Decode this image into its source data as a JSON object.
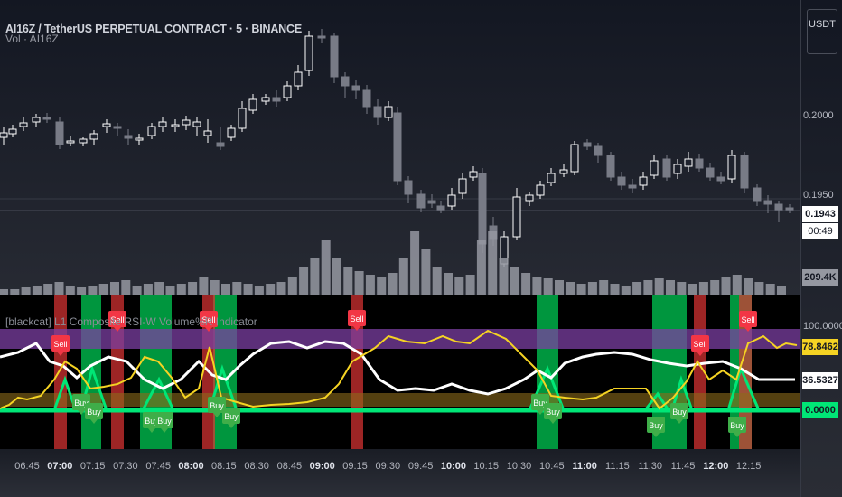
{
  "header": {
    "symbol_title": "AI16Z / TetherUS PERPETUAL CONTRACT · 5 · BINANCE",
    "volume_label": "Vol · AI16Z",
    "indicator_title": "[blackcat] L1 Composite RSI-W Volume%R Indicator"
  },
  "price_axis": {
    "currency": "USDT",
    "level_1": "0.2000",
    "level_2": "0.1950",
    "last_price": "0.1943",
    "countdown": "00:49",
    "volume": "209.4K",
    "ind_level_top": "100.0000",
    "ind_yellow": "78.8462",
    "ind_white": "36.5327",
    "ind_green": "0.0000"
  },
  "time_axis": {
    "ticks": [
      "06:45",
      "07:00",
      "07:15",
      "07:30",
      "07:45",
      "08:00",
      "08:15",
      "08:30",
      "08:45",
      "09:00",
      "09:15",
      "09:30",
      "09:45",
      "10:00",
      "10:15",
      "10:30",
      "10:45",
      "11:00",
      "11:15",
      "11:30",
      "11:45",
      "12:00",
      "12:15"
    ],
    "bold_ticks": [
      "07:00",
      "08:00",
      "09:00",
      "10:00",
      "11:00",
      "12:00"
    ]
  },
  "signals": {
    "sell_label": "Sell",
    "buy_label": "Buy"
  },
  "colors": {
    "up_candle": "#ffffff",
    "down_candle": "#787b86",
    "yellow_line": "#f5d323",
    "white_line": "#ffffff",
    "green_line": "#00e676",
    "sell_bg": "#e03535",
    "buy_bg": "#00c853",
    "purple_band": "#7b3fa1",
    "orange_band": "#8c6a1a"
  }
}
